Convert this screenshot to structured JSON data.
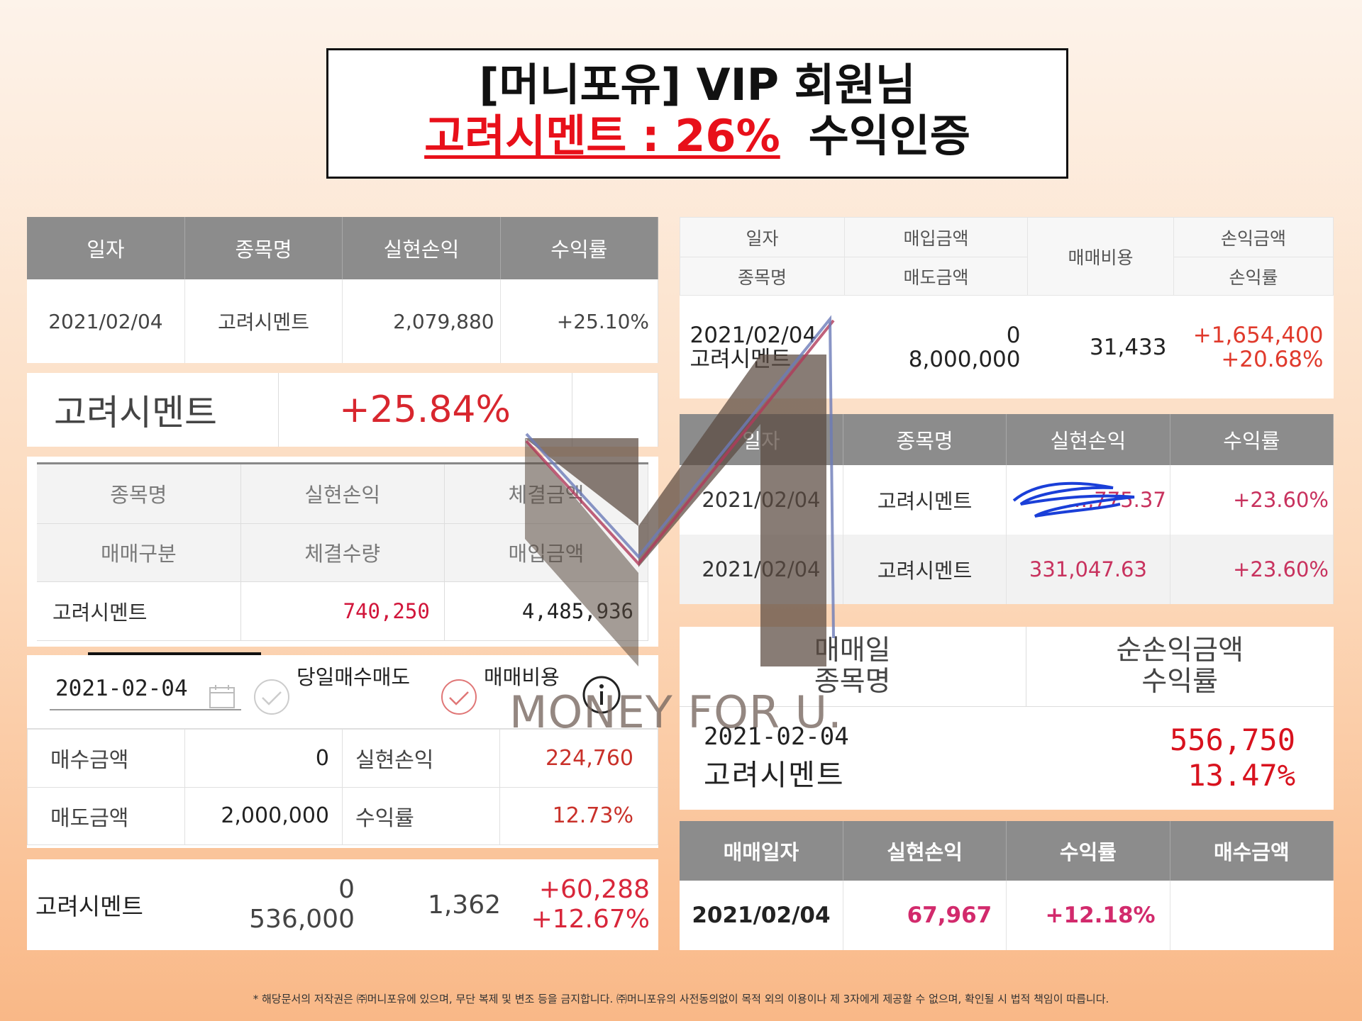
{
  "title": {
    "line1": "[머니포유] VIP 회원님",
    "line2_red": "고려시멘트 : 26%",
    "line2_dark": "수익인증"
  },
  "panel1": {
    "headers": [
      "일자",
      "종목명",
      "실현손익",
      "수익률"
    ],
    "row": {
      "date": "2021/02/04",
      "name": "고려시멘트",
      "profit": "2,079,880",
      "rate": "+25.10%"
    }
  },
  "panel2": {
    "name": "고려시멘트",
    "rate": "+25.84%"
  },
  "panel3": {
    "header_row1": [
      "종목명",
      "실현손익",
      "체결금액"
    ],
    "header_row2": [
      "매매구분",
      "체결수량",
      "매입금액"
    ],
    "row": {
      "name": "고려시멘트",
      "profit": "740,250",
      "amount": "4,485,936"
    }
  },
  "panel4": {
    "date": "2021-02-04",
    "check1": "당일매수매도",
    "check2": "매매비용",
    "rows": [
      {
        "label1": "매수금액",
        "value1": "0",
        "label2": "실현손익",
        "value2": "224,760"
      },
      {
        "label1": "매도금액",
        "value1": "2,000,000",
        "label2": "수익률",
        "value2": "12.73%"
      }
    ]
  },
  "panel5": {
    "name": "고려시멘트",
    "buy": "0",
    "sell": "536,000",
    "fee": "1,362",
    "profit": "+60,288",
    "rate": "+12.67%"
  },
  "right1": {
    "h_date": "일자",
    "h_name": "종목명",
    "h_buy": "매입금액",
    "h_sell": "매도금액",
    "h_fee": "매매비용",
    "h_profit": "손익금액",
    "h_rate": "손익률",
    "date": "2021/02/04",
    "name": "고려시멘트",
    "buy": "0",
    "sell": "8,000,000",
    "fee": "31,433",
    "profit": "+1,654,400",
    "rate": "+20.68%"
  },
  "right2": {
    "headers": [
      "일자",
      "종목명",
      "실현손익",
      "수익률"
    ],
    "rows": [
      {
        "date": "2021/02/04",
        "name": "고려시멘트",
        "profit": "…,775.37",
        "rate": "+23.60%"
      },
      {
        "date": "2021/02/04",
        "name": "고려시멘트",
        "profit": "331,047.63",
        "rate": "+23.60%"
      }
    ]
  },
  "right3": {
    "h_date": "매매일",
    "h_name": "종목명",
    "h_profit": "순손익금액",
    "h_rate": "수익률",
    "date": "2021-02-04",
    "name": "고려시멘트",
    "profit": "556,750",
    "rate": "13.47%"
  },
  "right4": {
    "headers": [
      "매매일자",
      "실현손익",
      "수익률",
      "매수금액"
    ],
    "row": {
      "date": "2021/02/04",
      "profit": "67,967",
      "rate": "+12.18%",
      "buy": ""
    }
  },
  "watermark": "MONEY FOR U.",
  "footer": "* 해당문서의 저작권은 ㈜머니포유에 있으며, 무단 복제 및 변조 등을 금지합니다. ㈜머니포유의 사전동의없이 목적 외의 이용이나 제 3자에게 제공할 수 없으며, 확인될 시 법적 책임이 따릅니다.",
  "colors": {
    "accent_red": "#e8101a",
    "profit_pink": "#c8325e",
    "header_gray": "#8c8c8c",
    "sell_blue": "#1c7fbf"
  }
}
